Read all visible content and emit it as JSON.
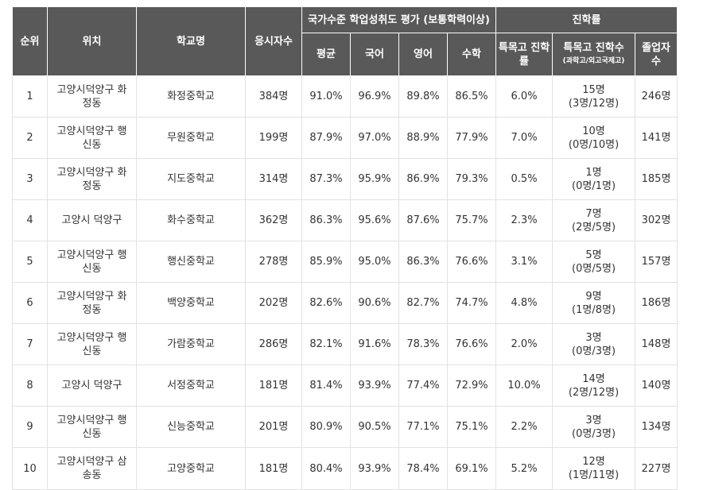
{
  "headers": {
    "rank": "순위",
    "location": "위치",
    "school": "학교명",
    "examinees": "응시자수",
    "group_assessment": "국가수준 학업성취도 평가 (보통학력이상)",
    "group_advance": "진학률",
    "avg": "평균",
    "korean": "국어",
    "english": "영어",
    "math": "수학",
    "special_rate": "특목고 진학률",
    "special_count": "특목고 진학수",
    "special_count_note": "(과학고/외고국제고)",
    "graduates": "졸업자 수"
  },
  "rows": [
    {
      "rank": "1",
      "location": "고양시덕양구 화정동",
      "school": "화정중학교",
      "examinees": "384명",
      "avg": "91.0%",
      "korean": "96.9%",
      "english": "89.8%",
      "math": "86.5%",
      "special_rate": "6.0%",
      "special_total": "15명",
      "special_detail": "(3명/12명)",
      "graduates": "246명"
    },
    {
      "rank": "2",
      "location": "고양시덕양구 행신동",
      "school": "무원중학교",
      "examinees": "199명",
      "avg": "87.9%",
      "korean": "97.0%",
      "english": "88.9%",
      "math": "77.9%",
      "special_rate": "7.0%",
      "special_total": "10명",
      "special_detail": "(0명/10명)",
      "graduates": "141명"
    },
    {
      "rank": "3",
      "location": "고양시덕양구 화정동",
      "school": "지도중학교",
      "examinees": "314명",
      "avg": "87.3%",
      "korean": "95.9%",
      "english": "86.9%",
      "math": "79.3%",
      "special_rate": "0.5%",
      "special_total": "1명",
      "special_detail": "(0명/1명)",
      "graduates": "185명"
    },
    {
      "rank": "4",
      "location": "고양시 덕양구",
      "school": "화수중학교",
      "examinees": "362명",
      "avg": "86.3%",
      "korean": "95.6%",
      "english": "87.6%",
      "math": "75.7%",
      "special_rate": "2.3%",
      "special_total": "7명",
      "special_detail": "(2명/5명)",
      "graduates": "302명"
    },
    {
      "rank": "5",
      "location": "고양시덕양구 행신동",
      "school": "행신중학교",
      "examinees": "278명",
      "avg": "85.9%",
      "korean": "95.0%",
      "english": "86.3%",
      "math": "76.6%",
      "special_rate": "3.1%",
      "special_total": "5명",
      "special_detail": "(0명/5명)",
      "graduates": "157명"
    },
    {
      "rank": "6",
      "location": "고양시덕양구 화정동",
      "school": "백양중학교",
      "examinees": "202명",
      "avg": "82.6%",
      "korean": "90.6%",
      "english": "82.7%",
      "math": "74.7%",
      "special_rate": "4.8%",
      "special_total": "9명",
      "special_detail": "(1명/8명)",
      "graduates": "186명"
    },
    {
      "rank": "7",
      "location": "고양시덕양구 행신동",
      "school": "가람중학교",
      "examinees": "286명",
      "avg": "82.1%",
      "korean": "91.6%",
      "english": "78.3%",
      "math": "76.6%",
      "special_rate": "2.0%",
      "special_total": "3명",
      "special_detail": "(0명/3명)",
      "graduates": "148명"
    },
    {
      "rank": "8",
      "location": "고양시 덕양구",
      "school": "서정중학교",
      "examinees": "181명",
      "avg": "81.4%",
      "korean": "93.9%",
      "english": "77.4%",
      "math": "72.9%",
      "special_rate": "10.0%",
      "special_total": "14명",
      "special_detail": "(2명/12명)",
      "graduates": "140명"
    },
    {
      "rank": "9",
      "location": "고양시덕양구 행신동",
      "school": "신능중학교",
      "examinees": "201명",
      "avg": "80.9%",
      "korean": "90.5%",
      "english": "77.1%",
      "math": "75.1%",
      "special_rate": "2.2%",
      "special_total": "3명",
      "special_detail": "(0명/3명)",
      "graduates": "134명"
    },
    {
      "rank": "10",
      "location": "고양시덕양구 삼송동",
      "school": "고양중학교",
      "examinees": "181명",
      "avg": "80.4%",
      "korean": "93.9%",
      "english": "78.4%",
      "math": "69.1%",
      "special_rate": "5.2%",
      "special_total": "12명",
      "special_detail": "(1명/11명)",
      "graduates": "227명"
    }
  ]
}
